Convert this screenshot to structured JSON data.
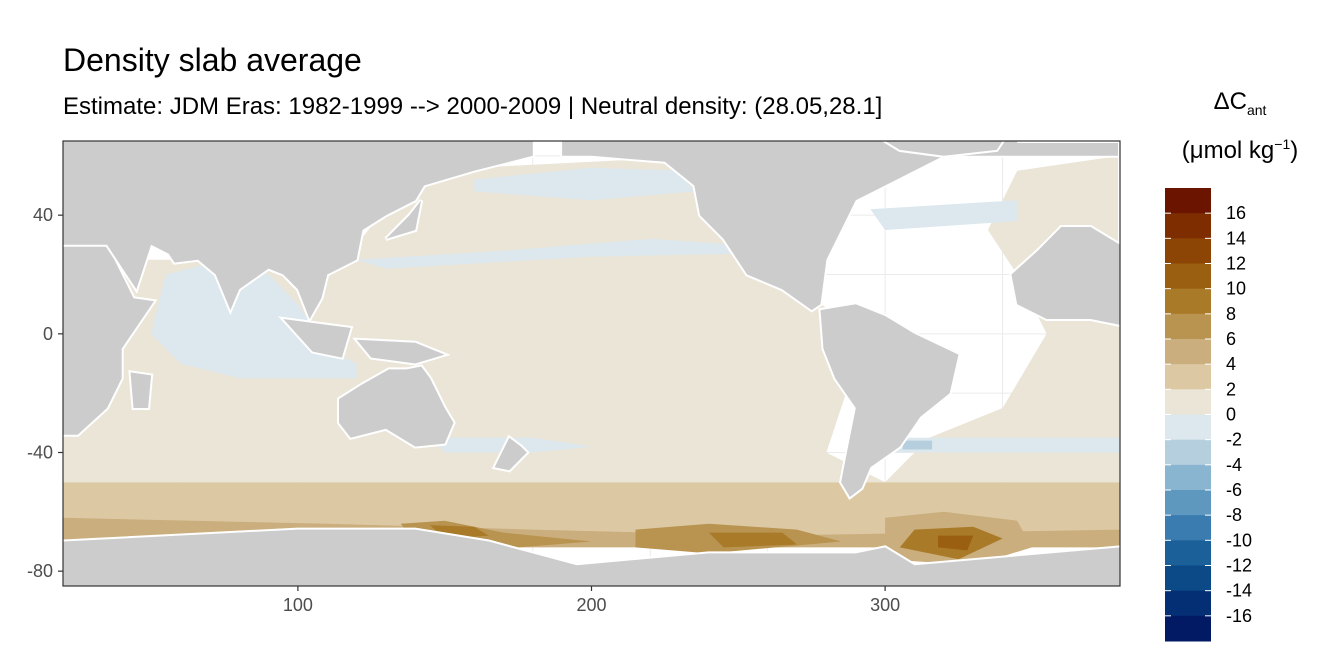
{
  "title": "Density slab average",
  "subtitle": "Estimate: JDM Eras: 1982-1999 --> 2000-2009 | Neutral density: (28.05,28.1]",
  "legend": {
    "title_symbol": "ΔC",
    "title_subscript": "ant",
    "unit_prefix": "(μmol kg",
    "unit_superscript": "−1",
    "unit_suffix": ")"
  },
  "colors": {
    "land": "#cccccc",
    "no_data": "#ffffff",
    "panel_border": "#333333",
    "bins": [
      "#6b1500",
      "#7e2d00",
      "#8c4505",
      "#9a5f10",
      "#a97a28",
      "#b99350",
      "#cbae7d",
      "#dcc9a4",
      "#ebe5d8",
      "#dce8ee",
      "#b5cfdf",
      "#8ab5d0",
      "#5e98bf",
      "#3a7cb0",
      "#1c609a",
      "#0b4a87",
      "#052f74",
      "#021963"
    ]
  },
  "chart_data": {
    "type": "heatmap",
    "title": "Density slab average",
    "subtitle": "Estimate: JDM Eras: 1982-1999 --> 2000-2009 | Neutral density: (28.05,28.1]",
    "xlabel": "",
    "ylabel": "",
    "xlim": [
      20,
      380
    ],
    "ylim": [
      -85,
      65
    ],
    "x_ticks": [
      100,
      200,
      300
    ],
    "y_ticks": [
      40,
      0,
      -40,
      -80
    ],
    "grid": true,
    "legend_position": "right",
    "legend_labels": [
      "16",
      "14",
      "12",
      "10",
      "8",
      "6",
      "4",
      "2",
      "0",
      "-2",
      "-4",
      "-6",
      "-8",
      "-10",
      "-12",
      "-14",
      "-16"
    ],
    "legend_breaks": [
      18,
      16,
      14,
      12,
      10,
      8,
      6,
      4,
      2,
      0,
      -2,
      -4,
      -6,
      -8,
      -10,
      -12,
      -14,
      -16,
      -18
    ],
    "regions": [
      {
        "region": "Southern Ocean band",
        "lon": [
          20,
          380
        ],
        "lat": [
          -72,
          -50
        ],
        "value": 3
      },
      {
        "region": "Antarctic margin Indian/Pacific",
        "lon": [
          140,
          170
        ],
        "lat": [
          -70,
          -64
        ],
        "value": 9
      },
      {
        "region": "Antarctic margin Pacific",
        "lon": [
          220,
          280
        ],
        "lat": [
          -72,
          -65
        ],
        "value": 8
      },
      {
        "region": "Weddell Sea",
        "lon": [
          300,
          345
        ],
        "lat": [
          -78,
          -62
        ],
        "value": 10
      },
      {
        "region": "South Atlantic subtropics",
        "lon": [
          300,
          340
        ],
        "lat": [
          -40,
          -36
        ],
        "value": -3
      },
      {
        "region": "Indian Ocean",
        "lon": [
          40,
          110
        ],
        "lat": [
          -15,
          25
        ],
        "value": -1
      },
      {
        "region": "North Pacific",
        "lon": [
          140,
          240
        ],
        "lat": [
          30,
          55
        ],
        "value": -1
      },
      {
        "region": "North Atlantic",
        "lon": [
          280,
          350
        ],
        "lat": [
          30,
          45
        ],
        "value": -1
      },
      {
        "region": "Pacific interior",
        "lon": [
          120,
          290
        ],
        "lat": [
          -50,
          30
        ],
        "value": 1
      }
    ]
  }
}
